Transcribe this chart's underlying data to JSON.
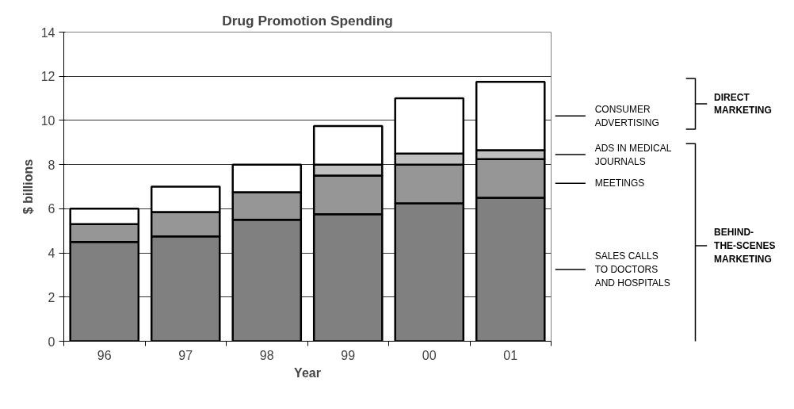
{
  "chart_data": {
    "type": "bar",
    "title": "Drug Promotion Spending",
    "xlabel": "Year",
    "ylabel": "$ billions",
    "categories": [
      "96",
      "97",
      "98",
      "99",
      "00",
      "01"
    ],
    "stacked": true,
    "series": [
      {
        "name": "SALES CALLS\nTO DOCTORS\nAND HOSPITALS",
        "color": "#808080",
        "values": [
          4.5,
          4.75,
          5.5,
          5.75,
          6.25,
          6.5
        ]
      },
      {
        "name": "MEETINGS",
        "color": "#969696",
        "values": [
          0.8,
          1.1,
          1.25,
          1.75,
          1.75,
          1.75
        ]
      },
      {
        "name": "ADS IN MEDICAL\nJOURNALS",
        "color": "#c0c0c0",
        "values": [
          null,
          null,
          null,
          0.5,
          0.5,
          0.4
        ]
      },
      {
        "name": "CONSUMER\nADVERTISING",
        "color": "#ffffff",
        "values": [
          0.7,
          1.15,
          1.25,
          1.75,
          2.5,
          3.1
        ]
      }
    ],
    "annotations": [
      "DIRECT\nMARKETING",
      "BEHIND-\nTHE-SCENES\nMARKETING"
    ],
    "ylim": [
      0,
      14
    ],
    "yticks": [
      0,
      2,
      4,
      6,
      8,
      10,
      12,
      14
    ],
    "grid": "y",
    "legend": "right"
  }
}
